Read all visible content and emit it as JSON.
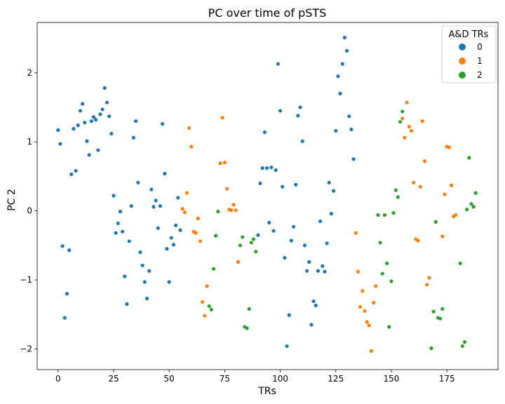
{
  "chart_data": {
    "type": "scatter",
    "title": "PC over time of pSTS",
    "xlabel": "TRs",
    "ylabel": "PC 2",
    "xlim": [
      -9.4,
      198
    ],
    "ylim": [
      -2.3,
      2.73
    ],
    "xticks": [
      0,
      25,
      50,
      75,
      100,
      125,
      150,
      175
    ],
    "yticks": [
      -2,
      -1,
      0,
      1,
      2
    ],
    "grid": false,
    "legend": {
      "title": "A&D TRs",
      "position": "top-right"
    },
    "colors": {
      "0": "#1f77b4",
      "1": "#ff7f0e",
      "2": "#2ca02c"
    },
    "series": [
      {
        "name": "0",
        "color": "#1f77b4",
        "points": [
          [
            0,
            1.17
          ],
          [
            1,
            0.97
          ],
          [
            2,
            -0.51
          ],
          [
            3,
            -1.55
          ],
          [
            4,
            -1.2
          ],
          [
            5,
            -0.57
          ],
          [
            6,
            0.53
          ],
          [
            7,
            1.19
          ],
          [
            8,
            0.58
          ],
          [
            9,
            1.24
          ],
          [
            10,
            1.45
          ],
          [
            11,
            1.55
          ],
          [
            12,
            1.28
          ],
          [
            13,
            1.01
          ],
          [
            14,
            0.81
          ],
          [
            15,
            1.3
          ],
          [
            16,
            1.36
          ],
          [
            17,
            1.32
          ],
          [
            18,
            0.88
          ],
          [
            19,
            1.4
          ],
          [
            20,
            1.47
          ],
          [
            21,
            1.78
          ],
          [
            22,
            1.57
          ],
          [
            23,
            1.37
          ],
          [
            24,
            1.12
          ],
          [
            25,
            0.22
          ],
          [
            26,
            -0.32
          ],
          [
            27,
            -0.18
          ],
          [
            28,
            -0.01
          ],
          [
            29,
            -0.3
          ],
          [
            30,
            -0.95
          ],
          [
            31,
            -1.35
          ],
          [
            32,
            -0.44
          ],
          [
            33,
            0.07
          ],
          [
            34,
            1.06
          ],
          [
            35,
            1.3
          ],
          [
            36,
            0.41
          ],
          [
            37,
            -0.6
          ],
          [
            38,
            -0.79
          ],
          [
            39,
            -1.03
          ],
          [
            40,
            -1.27
          ],
          [
            41,
            -0.87
          ],
          [
            42,
            0.31
          ],
          [
            43,
            0.06
          ],
          [
            44,
            0.15
          ],
          [
            45,
            -0.25
          ],
          [
            46,
            0.07
          ],
          [
            47,
            1.26
          ],
          [
            48,
            0.54
          ],
          [
            49,
            -0.55
          ],
          [
            50,
            -1.03
          ],
          [
            51,
            -0.39
          ],
          [
            52,
            -0.49
          ],
          [
            53,
            -0.21
          ],
          [
            54,
            0.19
          ],
          [
            55,
            -0.28
          ],
          [
            90,
            -0.35
          ],
          [
            91,
            0.4
          ],
          [
            92,
            0.62
          ],
          [
            93,
            1.14
          ],
          [
            94,
            0.62
          ],
          [
            95,
            -0.17
          ],
          [
            96,
            0.63
          ],
          [
            97,
            -0.29
          ],
          [
            98,
            0.59
          ],
          [
            99,
            2.13
          ],
          [
            100,
            1.45
          ],
          [
            101,
            0.35
          ],
          [
            102,
            -0.68
          ],
          [
            103,
            -1.96
          ],
          [
            104,
            -1.51
          ],
          [
            105,
            -0.43
          ],
          [
            106,
            -0.23
          ],
          [
            107,
            0.38
          ],
          [
            108,
            1.38
          ],
          [
            109,
            1.5
          ],
          [
            110,
            1.01
          ],
          [
            111,
            -0.5
          ],
          [
            112,
            -0.87
          ],
          [
            113,
            -0.74
          ],
          [
            114,
            -1.65
          ],
          [
            115,
            -1.31
          ],
          [
            116,
            -1.37
          ],
          [
            117,
            -0.87
          ],
          [
            118,
            -0.15
          ],
          [
            119,
            -0.8
          ],
          [
            120,
            -0.88
          ],
          [
            121,
            -0.47
          ],
          [
            122,
            0.41
          ],
          [
            123,
            -0.04
          ],
          [
            124,
            0.29
          ],
          [
            125,
            1.16
          ],
          [
            126,
            1.95
          ],
          [
            127,
            1.7
          ],
          [
            128,
            2.13
          ],
          [
            129,
            2.51
          ],
          [
            130,
            2.32
          ],
          [
            131,
            1.37
          ],
          [
            132,
            1.18
          ],
          [
            133,
            0.75
          ]
        ]
      },
      {
        "name": "1",
        "color": "#ff7f0e",
        "points": [
          [
            56,
            0.03
          ],
          [
            57,
            -0.02
          ],
          [
            58,
            0.26
          ],
          [
            59,
            1.2
          ],
          [
            60,
            0.93
          ],
          [
            61,
            -0.3
          ],
          [
            62,
            -0.32
          ],
          [
            63,
            -0.11
          ],
          [
            64,
            -0.44
          ],
          [
            65,
            -1.32
          ],
          [
            66,
            -1.52
          ],
          [
            67,
            -1.09
          ],
          [
            73,
            0.69
          ],
          [
            74,
            1.35
          ],
          [
            75,
            0.7
          ],
          [
            76,
            0.32
          ],
          [
            77,
            0.02
          ],
          [
            78,
            0.01
          ],
          [
            79,
            0.09
          ],
          [
            80,
            0.01
          ],
          [
            81,
            -0.74
          ],
          [
            134,
            -0.32
          ],
          [
            135,
            -0.88
          ],
          [
            136,
            -1.39
          ],
          [
            137,
            -1.16
          ],
          [
            138,
            -1.45
          ],
          [
            139,
            -1.61
          ],
          [
            140,
            -1.66
          ],
          [
            141,
            -2.03
          ],
          [
            142,
            -1.33
          ],
          [
            143,
            -1.09
          ],
          [
            155,
            1.34
          ],
          [
            156,
            1.06
          ],
          [
            157,
            1.57
          ],
          [
            158,
            1.22
          ],
          [
            159,
            1.16
          ],
          [
            160,
            0.41
          ],
          [
            161,
            -0.41
          ],
          [
            162,
            -0.43
          ],
          [
            163,
            0.35
          ],
          [
            164,
            1.3
          ],
          [
            165,
            0.72
          ],
          [
            166,
            -1.07
          ],
          [
            167,
            -0.97
          ],
          [
            173,
            -0.37
          ],
          [
            174,
            0.24
          ],
          [
            175,
            0.93
          ],
          [
            176,
            0.92
          ],
          [
            177,
            0.37
          ],
          [
            178,
            -0.08
          ],
          [
            179,
            -0.06
          ]
        ]
      },
      {
        "name": "2",
        "color": "#2ca02c",
        "points": [
          [
            68,
            -1.38
          ],
          [
            69,
            -1.43
          ],
          [
            70,
            -0.84
          ],
          [
            71,
            -0.36
          ],
          [
            72,
            -0.01
          ],
          [
            82,
            -0.5
          ],
          [
            83,
            -0.38
          ],
          [
            84,
            -1.68
          ],
          [
            85,
            -1.7
          ],
          [
            86,
            -1.42
          ],
          [
            87,
            -0.46
          ],
          [
            88,
            -0.41
          ],
          [
            89,
            -0.59
          ],
          [
            144,
            -0.06
          ],
          [
            145,
            -0.46
          ],
          [
            146,
            -0.91
          ],
          [
            147,
            -0.06
          ],
          [
            148,
            -0.76
          ],
          [
            149,
            -1.68
          ],
          [
            150,
            -1.02
          ],
          [
            151,
            -0.03
          ],
          [
            152,
            0.3
          ],
          [
            153,
            0.2
          ],
          [
            154,
            1.29
          ],
          [
            155,
            1.44
          ],
          [
            168,
            -1.99
          ],
          [
            169,
            -1.46
          ],
          [
            170,
            -0.16
          ],
          [
            171,
            -1.55
          ],
          [
            172,
            -1.56
          ],
          [
            173,
            -1.42
          ],
          [
            181,
            -0.76
          ],
          [
            182,
            -1.96
          ],
          [
            183,
            -1.9
          ],
          [
            184,
            0.02
          ],
          [
            185,
            0.77
          ],
          [
            186,
            0.1
          ],
          [
            187,
            0.06
          ],
          [
            188,
            0.26
          ]
        ]
      }
    ]
  }
}
